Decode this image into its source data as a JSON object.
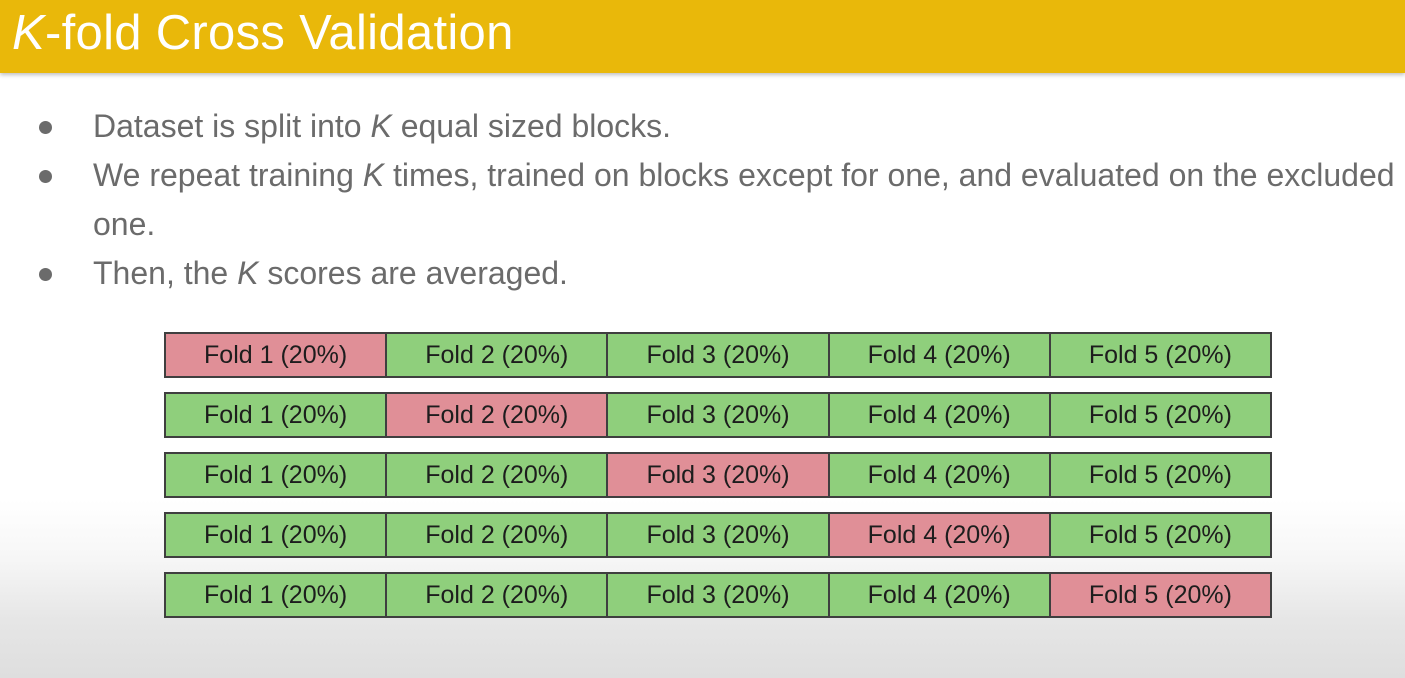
{
  "slide": {
    "title_italic": "K",
    "title_rest": "-fold Cross Validation",
    "bullets": [
      {
        "pre": "Dataset is split into ",
        "k": "K",
        "post": " equal sized blocks."
      },
      {
        "pre": "We repeat training ",
        "k": "K",
        "post": " times, trained on blocks except for one, and evaluated on the excluded one."
      },
      {
        "pre": "Then, the ",
        "k": "K",
        "post": " scores are averaged."
      }
    ]
  },
  "folds": {
    "labels": [
      "Fold 1 (20%)",
      "Fold 2 (20%)",
      "Fold 3 (20%)",
      "Fold 4 (20%)",
      "Fold 5 (20%)"
    ],
    "test_fold_per_row": [
      0,
      1,
      2,
      3,
      4
    ],
    "colors": {
      "train": "#8fcf7c",
      "test": "#e08f97",
      "title_bar": "#e9b80a"
    }
  }
}
